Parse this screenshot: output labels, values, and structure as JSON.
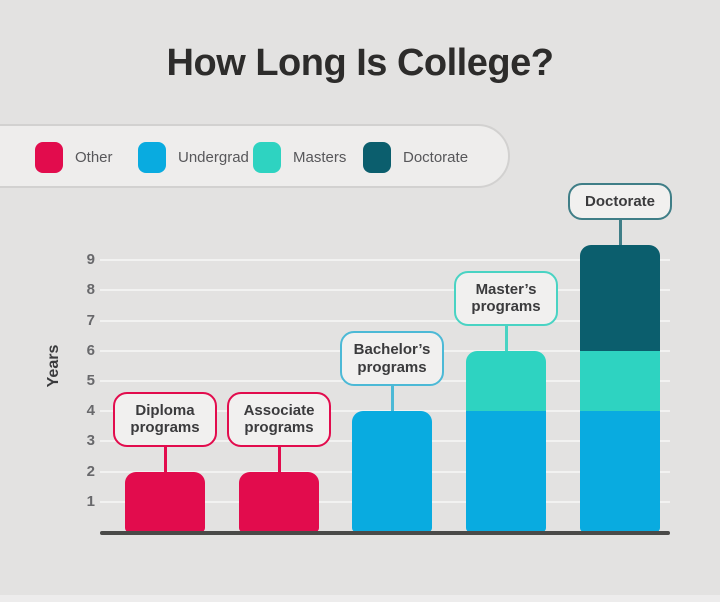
{
  "chart_data": {
    "type": "bar",
    "stacked": true,
    "title": "How Long Is College?",
    "xlabel": "",
    "ylabel": "Years",
    "ylim": [
      0,
      10
    ],
    "yticks": [
      1,
      2,
      3,
      4,
      5,
      6,
      7,
      8,
      9
    ],
    "grid": true,
    "legend_position": "top-left",
    "categories": [
      "Diploma programs",
      "Associate programs",
      "Bachelor’s programs",
      "Master’s programs",
      "Doctorate"
    ],
    "series": [
      {
        "name": "Other",
        "color": "#e20c4d",
        "values": [
          2,
          2,
          0,
          0,
          0
        ]
      },
      {
        "name": "Undergrad",
        "color": "#09abe0",
        "values": [
          0,
          0,
          4,
          4,
          4
        ]
      },
      {
        "name": "Masters",
        "color": "#2ed3c1",
        "values": [
          0,
          0,
          0,
          2,
          2
        ]
      },
      {
        "name": "Doctorate",
        "color": "#0b5e6d",
        "values": [
          0,
          0,
          0,
          0,
          3.5
        ]
      }
    ],
    "totals": [
      2,
      2,
      4,
      6,
      9.5
    ],
    "callouts": [
      {
        "label": "Diploma programs",
        "border_color": "#e20c4d"
      },
      {
        "label": "Associate programs",
        "border_color": "#e20c4d"
      },
      {
        "label": "Bachelor’s programs",
        "border_color": "#4cb9d6"
      },
      {
        "label": "Master’s programs",
        "border_color": "#49d3c3"
      },
      {
        "label": "Doctorate",
        "border_color": "#3f7e87"
      }
    ]
  },
  "colors": {
    "background": "#e3e2e1",
    "title_text": "#2d2c2b",
    "axis_line": "#4a4a48",
    "tick_text": "#68686b",
    "legend_background": "#eeedec",
    "legend_border": "#d2d1d0",
    "legend_text": "#57575a",
    "callout_background": "#f1f0ef",
    "callout_text": "#3b3b3d"
  }
}
